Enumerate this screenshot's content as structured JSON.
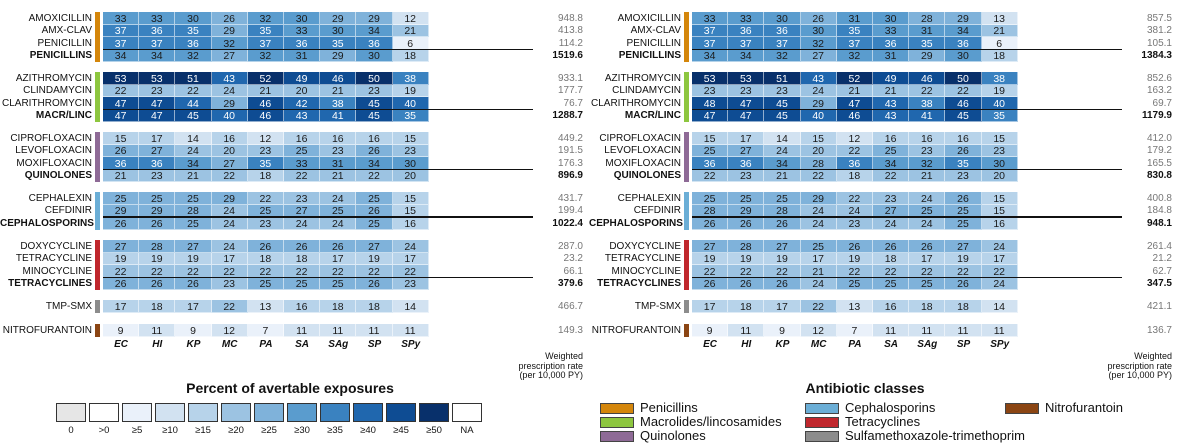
{
  "chart_data": [
    {
      "type": "heatmap",
      "columns": [
        "EC",
        "HI",
        "KP",
        "MC",
        "PA",
        "SA",
        "SAg",
        "SP",
        "SPy"
      ],
      "rate_header": [
        "Weighted",
        "prescription rate",
        "(per 10,000 PY)"
      ],
      "groups": [
        {
          "class": "penicillins",
          "color": "#D4860B",
          "rows": [
            {
              "label": "AMOXICILLIN",
              "values": [
                33,
                33,
                30,
                26,
                32,
                30,
                29,
                29,
                12
              ],
              "rate": "948.8"
            },
            {
              "label": "AMX-CLAV",
              "values": [
                37,
                36,
                35,
                29,
                35,
                33,
                30,
                34,
                21
              ],
              "rate": "413.8"
            },
            {
              "label": "PENICILLIN",
              "values": [
                37,
                37,
                36,
                32,
                37,
                36,
                35,
                36,
                6
              ],
              "rate": "114.2"
            }
          ],
          "summary": {
            "label": "PENICILLINS",
            "values": [
              34,
              34,
              32,
              27,
              32,
              31,
              29,
              30,
              18
            ],
            "rate": "1519.6"
          }
        },
        {
          "class": "macrolides",
          "color": "#8DC63F",
          "rows": [
            {
              "label": "AZITHROMYCIN",
              "values": [
                53,
                53,
                51,
                43,
                52,
                49,
                46,
                50,
                38
              ],
              "rate": "933.1"
            },
            {
              "label": "CLINDAMYCIN",
              "values": [
                22,
                23,
                22,
                24,
                21,
                20,
                21,
                23,
                19
              ],
              "rate": "177.7"
            },
            {
              "label": "CLARITHROMYCIN",
              "values": [
                47,
                47,
                44,
                29,
                46,
                42,
                38,
                45,
                40
              ],
              "rate": "76.7"
            }
          ],
          "summary": {
            "label": "MACR/LINC",
            "values": [
              47,
              47,
              45,
              40,
              46,
              43,
              41,
              45,
              35
            ],
            "rate": "1288.7"
          }
        },
        {
          "class": "quinolones",
          "color": "#8E6A96",
          "rows": [
            {
              "label": "CIPROFLOXACIN",
              "values": [
                15,
                17,
                14,
                16,
                12,
                16,
                16,
                16,
                15
              ],
              "rate": "449.2"
            },
            {
              "label": "LEVOFLOXACIN",
              "values": [
                26,
                27,
                24,
                20,
                23,
                25,
                23,
                26,
                23
              ],
              "rate": "191.5"
            },
            {
              "label": "MOXIFLOXACIN",
              "values": [
                36,
                36,
                34,
                27,
                35,
                33,
                31,
                34,
                30
              ],
              "rate": "176.3"
            }
          ],
          "summary": {
            "label": "QUINOLONES",
            "values": [
              21,
              23,
              21,
              22,
              18,
              22,
              21,
              22,
              20
            ],
            "rate": "896.9"
          }
        },
        {
          "class": "cephalosporins",
          "color": "#6BAED6",
          "rows": [
            {
              "label": "CEPHALEXIN",
              "values": [
                25,
                25,
                25,
                29,
                22,
                23,
                24,
                25,
                15
              ],
              "rate": "431.7"
            },
            {
              "label": "CEFDINIR",
              "values": [
                29,
                29,
                28,
                24,
                25,
                27,
                25,
                26,
                15
              ],
              "rate": "199.4"
            }
          ],
          "summary": {
            "label": "CEPHALOSPORINS",
            "values": [
              26,
              26,
              25,
              24,
              23,
              24,
              24,
              25,
              16
            ],
            "rate": "1022.4"
          }
        },
        {
          "class": "tetracyclines",
          "color": "#C0272D",
          "rows": [
            {
              "label": "DOXYCYCLINE",
              "values": [
                27,
                28,
                27,
                24,
                26,
                26,
                26,
                27,
                24
              ],
              "rate": "287.0"
            },
            {
              "label": "TETRACYCLINE",
              "values": [
                19,
                19,
                19,
                17,
                18,
                18,
                17,
                19,
                17
              ],
              "rate": "23.2"
            },
            {
              "label": "MINOCYCLINE",
              "values": [
                22,
                22,
                22,
                22,
                22,
                22,
                22,
                22,
                22
              ],
              "rate": "66.1"
            }
          ],
          "summary": {
            "label": "TETRACYCLINES",
            "values": [
              26,
              26,
              26,
              23,
              25,
              25,
              25,
              26,
              23
            ],
            "rate": "379.6"
          }
        },
        {
          "class": "tmpsmx",
          "color": "#8C8C8C",
          "rows": [
            {
              "label": "TMP-SMX",
              "values": [
                17,
                18,
                17,
                22,
                13,
                16,
                18,
                18,
                14
              ],
              "rate": "466.7"
            }
          ]
        },
        {
          "class": "nitrofurantoin",
          "color": "#8B4513",
          "rows": [
            {
              "label": "NITROFURANTOIN",
              "values": [
                9,
                11,
                9,
                12,
                7,
                11,
                11,
                11,
                11
              ],
              "rate": "149.3"
            }
          ]
        }
      ]
    },
    {
      "type": "heatmap",
      "columns": [
        "EC",
        "HI",
        "KP",
        "MC",
        "PA",
        "SA",
        "SAg",
        "SP",
        "SPy"
      ],
      "rate_header": [
        "Weighted",
        "prescription rate",
        "(per 10,000 PY)"
      ],
      "groups": [
        {
          "class": "penicillins",
          "color": "#D4860B",
          "rows": [
            {
              "label": "AMOXICILLIN",
              "values": [
                33,
                33,
                30,
                26,
                31,
                30,
                28,
                29,
                13
              ],
              "rate": "857.5"
            },
            {
              "label": "AMX-CLAV",
              "values": [
                37,
                36,
                36,
                30,
                35,
                33,
                31,
                34,
                21
              ],
              "rate": "381.2"
            },
            {
              "label": "PENICILLIN",
              "values": [
                37,
                37,
                37,
                32,
                37,
                36,
                35,
                36,
                6
              ],
              "rate": "105.1"
            }
          ],
          "summary": {
            "label": "PENICILLINS",
            "values": [
              34,
              34,
              32,
              27,
              32,
              31,
              29,
              30,
              18
            ],
            "rate": "1384.3"
          }
        },
        {
          "class": "macrolides",
          "color": "#8DC63F",
          "rows": [
            {
              "label": "AZITHROMYCIN",
              "values": [
                53,
                53,
                51,
                43,
                52,
                49,
                46,
                50,
                38
              ],
              "rate": "852.6"
            },
            {
              "label": "CLINDAMYCIN",
              "values": [
                23,
                23,
                23,
                24,
                21,
                21,
                22,
                22,
                19
              ],
              "rate": "163.2"
            },
            {
              "label": "CLARITHROMYCIN",
              "values": [
                48,
                47,
                45,
                29,
                47,
                43,
                38,
                46,
                40
              ],
              "rate": "69.7"
            }
          ],
          "summary": {
            "label": "MACR/LINC",
            "values": [
              47,
              47,
              45,
              40,
              46,
              43,
              41,
              45,
              35
            ],
            "rate": "1179.9"
          }
        },
        {
          "class": "quinolones",
          "color": "#8E6A96",
          "rows": [
            {
              "label": "CIPROFLOXACIN",
              "values": [
                15,
                17,
                14,
                15,
                12,
                16,
                16,
                16,
                15
              ],
              "rate": "412.0"
            },
            {
              "label": "LEVOFLOXACIN",
              "values": [
                25,
                27,
                24,
                20,
                22,
                25,
                23,
                26,
                23
              ],
              "rate": "179.2"
            },
            {
              "label": "MOXIFLOXACIN",
              "values": [
                36,
                36,
                34,
                28,
                36,
                34,
                32,
                35,
                30
              ],
              "rate": "165.5"
            }
          ],
          "summary": {
            "label": "QUINOLONES",
            "values": [
              22,
              23,
              21,
              22,
              18,
              22,
              21,
              23,
              20
            ],
            "rate": "830.8"
          }
        },
        {
          "class": "cephalosporins",
          "color": "#6BAED6",
          "rows": [
            {
              "label": "CEPHALEXIN",
              "values": [
                25,
                25,
                25,
                29,
                22,
                23,
                24,
                26,
                15
              ],
              "rate": "400.8"
            },
            {
              "label": "CEFDINIR",
              "values": [
                28,
                29,
                28,
                24,
                24,
                27,
                25,
                25,
                15
              ],
              "rate": "184.8"
            }
          ],
          "summary": {
            "label": "CEPHALOSPORINS",
            "values": [
              26,
              26,
              26,
              24,
              23,
              24,
              24,
              25,
              16
            ],
            "rate": "948.1"
          }
        },
        {
          "class": "tetracyclines",
          "color": "#C0272D",
          "rows": [
            {
              "label": "DOXYCYCLINE",
              "values": [
                27,
                28,
                27,
                25,
                26,
                26,
                26,
                27,
                24
              ],
              "rate": "261.4"
            },
            {
              "label": "TETRACYCLINE",
              "values": [
                19,
                19,
                19,
                17,
                19,
                18,
                17,
                19,
                17
              ],
              "rate": "21.2"
            },
            {
              "label": "MINOCYCLINE",
              "values": [
                22,
                22,
                22,
                21,
                22,
                22,
                22,
                22,
                22
              ],
              "rate": "62.7"
            }
          ],
          "summary": {
            "label": "TETRACYCLINES",
            "values": [
              26,
              26,
              26,
              24,
              25,
              25,
              25,
              26,
              24
            ],
            "rate": "347.5"
          }
        },
        {
          "class": "tmpsmx",
          "color": "#8C8C8C",
          "rows": [
            {
              "label": "TMP-SMX",
              "values": [
                17,
                18,
                17,
                22,
                13,
                16,
                18,
                18,
                14
              ],
              "rate": "421.1"
            }
          ]
        },
        {
          "class": "nitrofurantoin",
          "color": "#8B4513",
          "rows": [
            {
              "label": "NITROFURANTOIN",
              "values": [
                9,
                11,
                9,
                12,
                7,
                11,
                11,
                11,
                11
              ],
              "rate": "136.7"
            }
          ]
        }
      ]
    }
  ],
  "legend_percent": {
    "title": "Percent of avertable exposures",
    "labels": [
      "0",
      ">0",
      "≥5",
      "≥10",
      "≥15",
      "≥20",
      "≥25",
      "≥30",
      "≥35",
      "≥40",
      "≥45",
      "≥50",
      "NA"
    ],
    "colors": [
      "#E6E6E6",
      "#FFFFFF",
      "#EAF1FA",
      "#D2E2F1",
      "#B7D3EA",
      "#9CC3E2",
      "#7FB2DA",
      "#5A9CCE",
      "#3A82C0",
      "#2067AE",
      "#0E4C93",
      "#08306B",
      "#FFFFFF"
    ],
    "thresholds": [
      5,
      10,
      15,
      20,
      25,
      30,
      35,
      40,
      45,
      50
    ]
  },
  "legend_classes": {
    "title": "Antibiotic classes",
    "items": [
      {
        "label": "Penicillins",
        "color": "#D4860B"
      },
      {
        "label": "Macrolides/lincosamides",
        "color": "#8DC63F"
      },
      {
        "label": "Quinolones",
        "color": "#8E6A96"
      },
      {
        "label": "Cephalosporins",
        "color": "#6BAED6"
      },
      {
        "label": "Tetracyclines",
        "color": "#C0272D"
      },
      {
        "label": "Sulfamethoxazole-trimethoprim",
        "color": "#8C8C8C"
      },
      {
        "label": "Nitrofurantoin",
        "color": "#8B4513"
      }
    ]
  }
}
